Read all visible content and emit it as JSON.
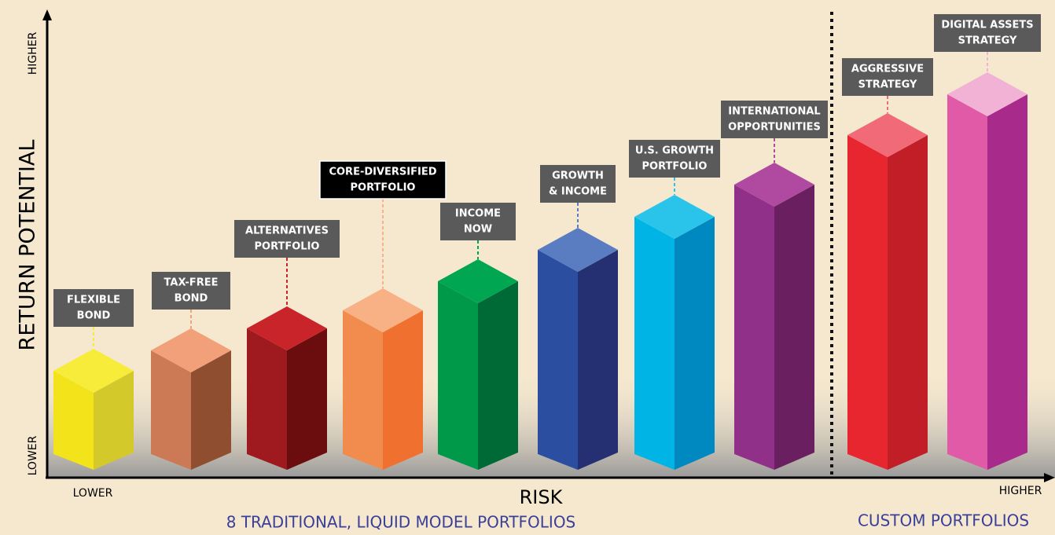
{
  "axes": {
    "y_label": "RETURN POTENTIAL",
    "y_high": "HIGHER",
    "y_low": "LOWER",
    "x_label": "RISK",
    "x_low": "LOWER",
    "x_high": "HIGHER"
  },
  "groups": [
    "8 TRADITIONAL, LIQUID MODEL PORTFOLIOS",
    "CUSTOM PORTFOLIOS"
  ],
  "portfolios": [
    {
      "lines": [
        "FLEXIBLE",
        "BOND"
      ]
    },
    {
      "lines": [
        "TAX-FREE",
        "BOND"
      ]
    },
    {
      "lines": [
        "ALTERNATIVES",
        "PORTFOLIO"
      ]
    },
    {
      "lines": [
        "CORE-DIVERSIFIED",
        "PORTFOLIO"
      ]
    },
    {
      "lines": [
        "INCOME",
        "NOW"
      ]
    },
    {
      "lines": [
        "GROWTH",
        "& INCOME"
      ]
    },
    {
      "lines": [
        "U.S. GROWTH",
        "PORTFOLIO"
      ]
    },
    {
      "lines": [
        "INTERNATIONAL",
        "OPPORTUNITIES"
      ]
    },
    {
      "lines": [
        "AGGRESSIVE",
        "STRATEGY"
      ]
    },
    {
      "lines": [
        "DIGITAL ASSETS",
        "STRATEGY"
      ]
    }
  ]
}
